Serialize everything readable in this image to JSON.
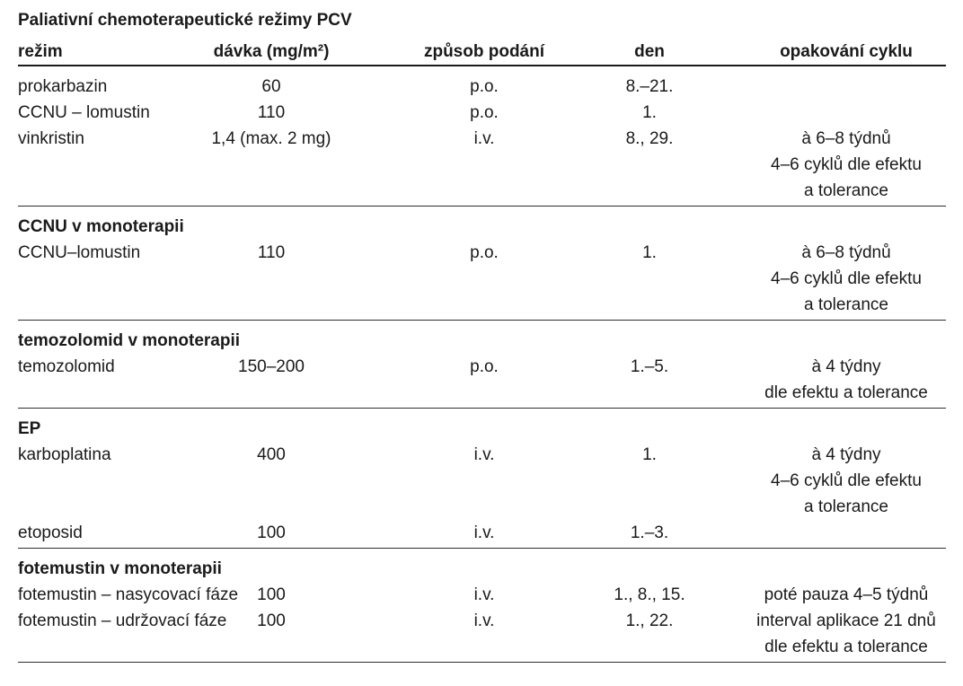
{
  "table": {
    "title": "Paliativní chemoterapeutické režimy PCV",
    "columns": [
      "režim",
      "dávka (mg/m²)",
      "způsob podání",
      "den",
      "opakování cyklu"
    ],
    "column_keys": [
      "rezim",
      "davka",
      "zpusob-podani",
      "den",
      "opakovani-cyklu"
    ],
    "sections": [
      {
        "header": null,
        "rows": [
          [
            "prokarbazin",
            "60",
            "p.o.",
            "8.–21.",
            ""
          ],
          [
            "CCNU – lomustin",
            "110",
            "p.o.",
            "1.",
            ""
          ],
          [
            "vinkristin",
            "1,4 (max. 2 mg)",
            "i.v.",
            "8., 29.",
            "à 6–8 týdnů"
          ],
          [
            "",
            "",
            "",
            "",
            "4–6 cyklů dle efektu"
          ],
          [
            "",
            "",
            "",
            "",
            "a tolerance"
          ]
        ]
      },
      {
        "header": "CCNU v monoterapii",
        "rows": [
          [
            "CCNU–lomustin",
            "110",
            "p.o.",
            "1.",
            "à 6–8 týdnů"
          ],
          [
            "",
            "",
            "",
            "",
            "4–6 cyklů dle efektu"
          ],
          [
            "",
            "",
            "",
            "",
            "a tolerance"
          ]
        ]
      },
      {
        "header": "temozolomid v monoterapii",
        "rows": [
          [
            "temozolomid",
            "150–200",
            "p.o.",
            "1.–5.",
            "à 4 týdny"
          ],
          [
            "",
            "",
            "",
            "",
            "dle efektu a tolerance"
          ]
        ]
      },
      {
        "header": "EP",
        "rows": [
          [
            "karboplatina",
            "400",
            "i.v.",
            "1.",
            "à 4 týdny"
          ],
          [
            "",
            "",
            "",
            "",
            "4–6 cyklů dle efektu"
          ],
          [
            "",
            "",
            "",
            "",
            "a tolerance"
          ],
          [
            "etoposid",
            "100",
            "i.v.",
            "1.–3.",
            ""
          ]
        ]
      },
      {
        "header": "fotemustin v monoterapii",
        "rows": [
          [
            "fotemustin – nasycovací fáze",
            "100",
            "i.v.",
            "1., 8., 15.",
            "poté pauza 4–5 týdnů"
          ],
          [
            "fotemustin – udržovací fáze",
            "100",
            "i.v.",
            "1., 22.",
            "interval aplikace 21 dnů"
          ],
          [
            "",
            "",
            "",
            "",
            "dle efektu a tolerance"
          ]
        ]
      }
    ],
    "colors": {
      "text": "#1a1a1a",
      "rule": "#2e2e2e",
      "background": "#ffffff"
    }
  }
}
